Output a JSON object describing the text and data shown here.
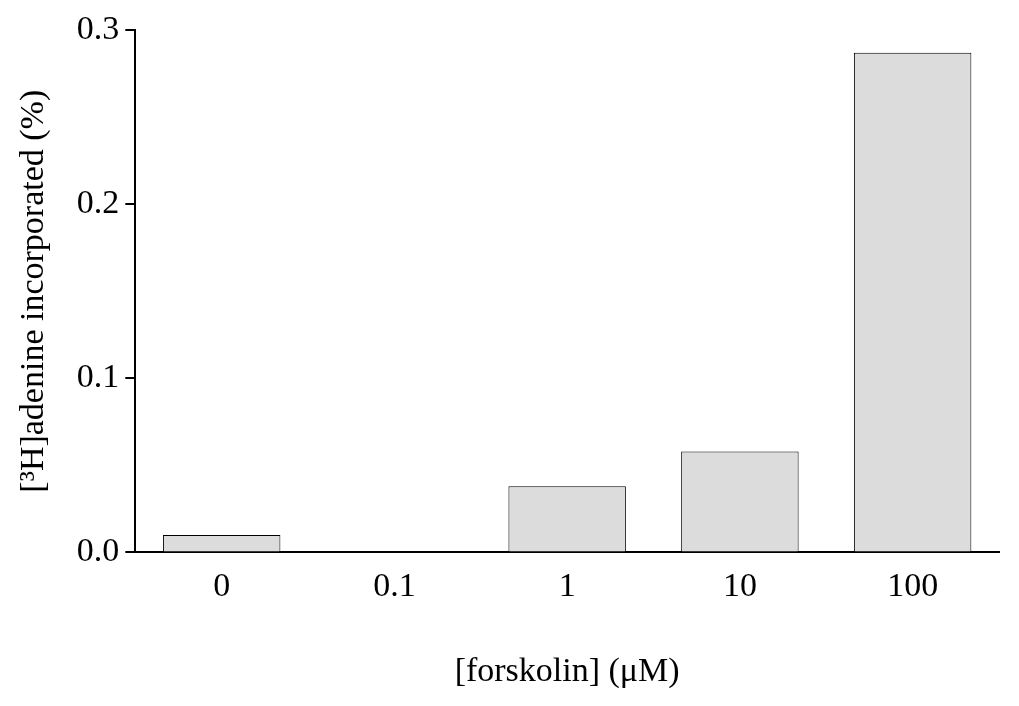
{
  "chart_data": {
    "type": "bar",
    "xlabel": "[forskolin] (μM)",
    "ylabel": "[³H]adenine incorporated (%)",
    "categories": [
      "0",
      "0.1",
      "1",
      "10",
      "100"
    ],
    "values": [
      0.01,
      0,
      0.038,
      0.058,
      0.287
    ],
    "color": "#dcdcdc",
    "ylim": [
      0,
      0.3
    ],
    "yticks": [
      {
        "value": 0,
        "label": "0.0"
      },
      {
        "value": 0.1,
        "label": "0.1"
      },
      {
        "value": 0.2,
        "label": "0.2"
      },
      {
        "value": 0.3,
        "label": "0.3"
      }
    ],
    "grid": false,
    "legend": false
  }
}
